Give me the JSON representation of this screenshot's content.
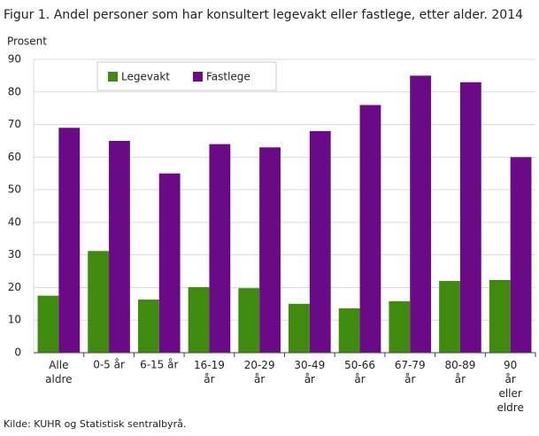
{
  "chart_data": {
    "type": "bar",
    "title": "Figur 1. Andel personer som har konsultert legevakt eller fastlege, etter alder. 2014",
    "y_label": "Prosent",
    "source": "Kilde: KUHR og Statistisk sentralbyrå.",
    "categories": [
      "Alle aldre",
      "0-5 år",
      "6-15 år",
      "16-19 år",
      "20-29 år",
      "30-49 år",
      "50-66 år",
      "67-79 år",
      "80-89 år",
      "90 år eller eldre"
    ],
    "series": [
      {
        "name": "Legevakt",
        "color": "#3f8a0f",
        "values": [
          17.5,
          31.2,
          16.3,
          20.1,
          19.8,
          15.0,
          13.6,
          15.8,
          22.0,
          22.3
        ]
      },
      {
        "name": "Fastlege",
        "color": "#6a0a87",
        "values": [
          69,
          65,
          55,
          64,
          63,
          68,
          76,
          85,
          83,
          60
        ]
      }
    ],
    "ylim": [
      0,
      90
    ],
    "yticks": [
      0,
      10,
      20,
      30,
      40,
      50,
      60,
      70,
      80,
      90
    ],
    "grid": true,
    "legend": "top-left"
  }
}
